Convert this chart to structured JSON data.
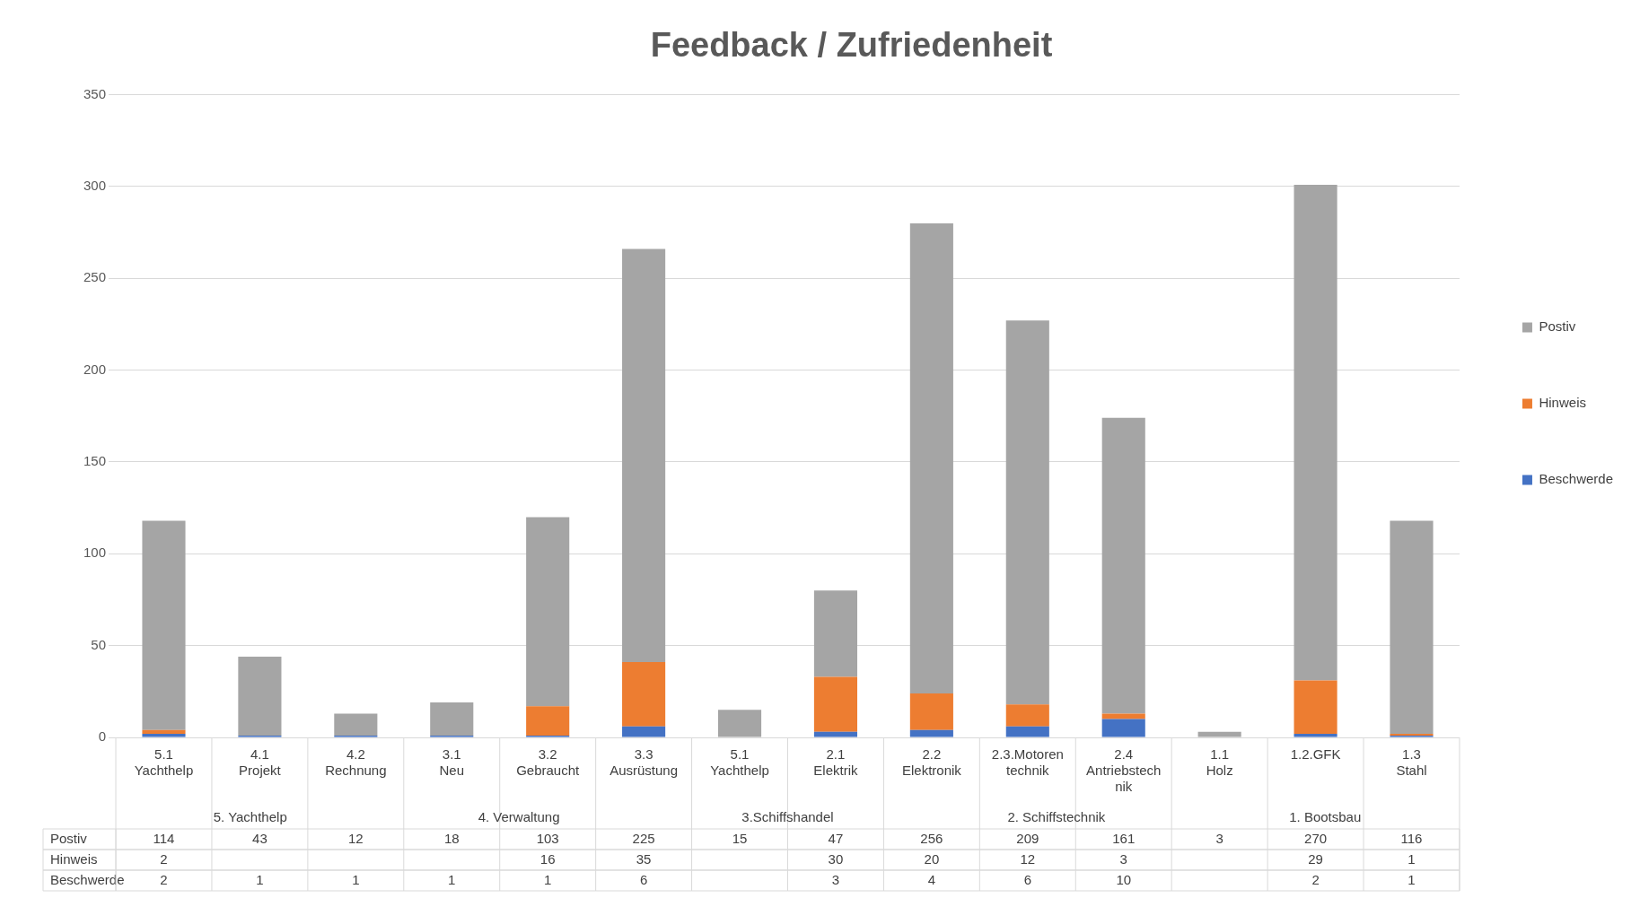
{
  "chart_data": {
    "type": "bar",
    "title": "Feedback / Zufriedenheit",
    "categories": [
      "5.1 Yachthelp",
      "4.1 Projekt",
      "4.2 Rechnung",
      "3.1 Neu",
      "3.2 Gebraucht",
      "3.3 Ausrüstung",
      "5.1 Yachthelp",
      "2.1 Elektrik",
      "2.2 Elektronik",
      "2.3.Motoren technik",
      "2.4 Antriebstech nik",
      "1.1 Holz",
      "1.2.GFK",
      "1.3 Stahl"
    ],
    "series": [
      {
        "name": "Beschwerde",
        "color": "#4472c4",
        "values": [
          2,
          1,
          1,
          1,
          1,
          6,
          null,
          3,
          4,
          6,
          10,
          null,
          2,
          1
        ]
      },
      {
        "name": "Hinweis",
        "color": "#ed7d31",
        "values": [
          2,
          null,
          null,
          null,
          16,
          35,
          null,
          30,
          20,
          12,
          3,
          null,
          29,
          1
        ]
      },
      {
        "name": "Postiv",
        "color": "#a5a5a5",
        "values": [
          114,
          43,
          12,
          18,
          103,
          225,
          15,
          47,
          256,
          209,
          161,
          3,
          270,
          116
        ]
      }
    ],
    "stacked": true,
    "ylim": [
      0,
      350
    ],
    "yticks": [
      0,
      50,
      100,
      150,
      200,
      250,
      300,
      350
    ],
    "grid": "y",
    "legend": "right",
    "data_labels": true,
    "annotations": [
      "5. Yachthelp",
      "4. Verwaltung",
      "3.Schiffshandel",
      "2. Schiffstechnik",
      "1. Bootsbau"
    ]
  }
}
